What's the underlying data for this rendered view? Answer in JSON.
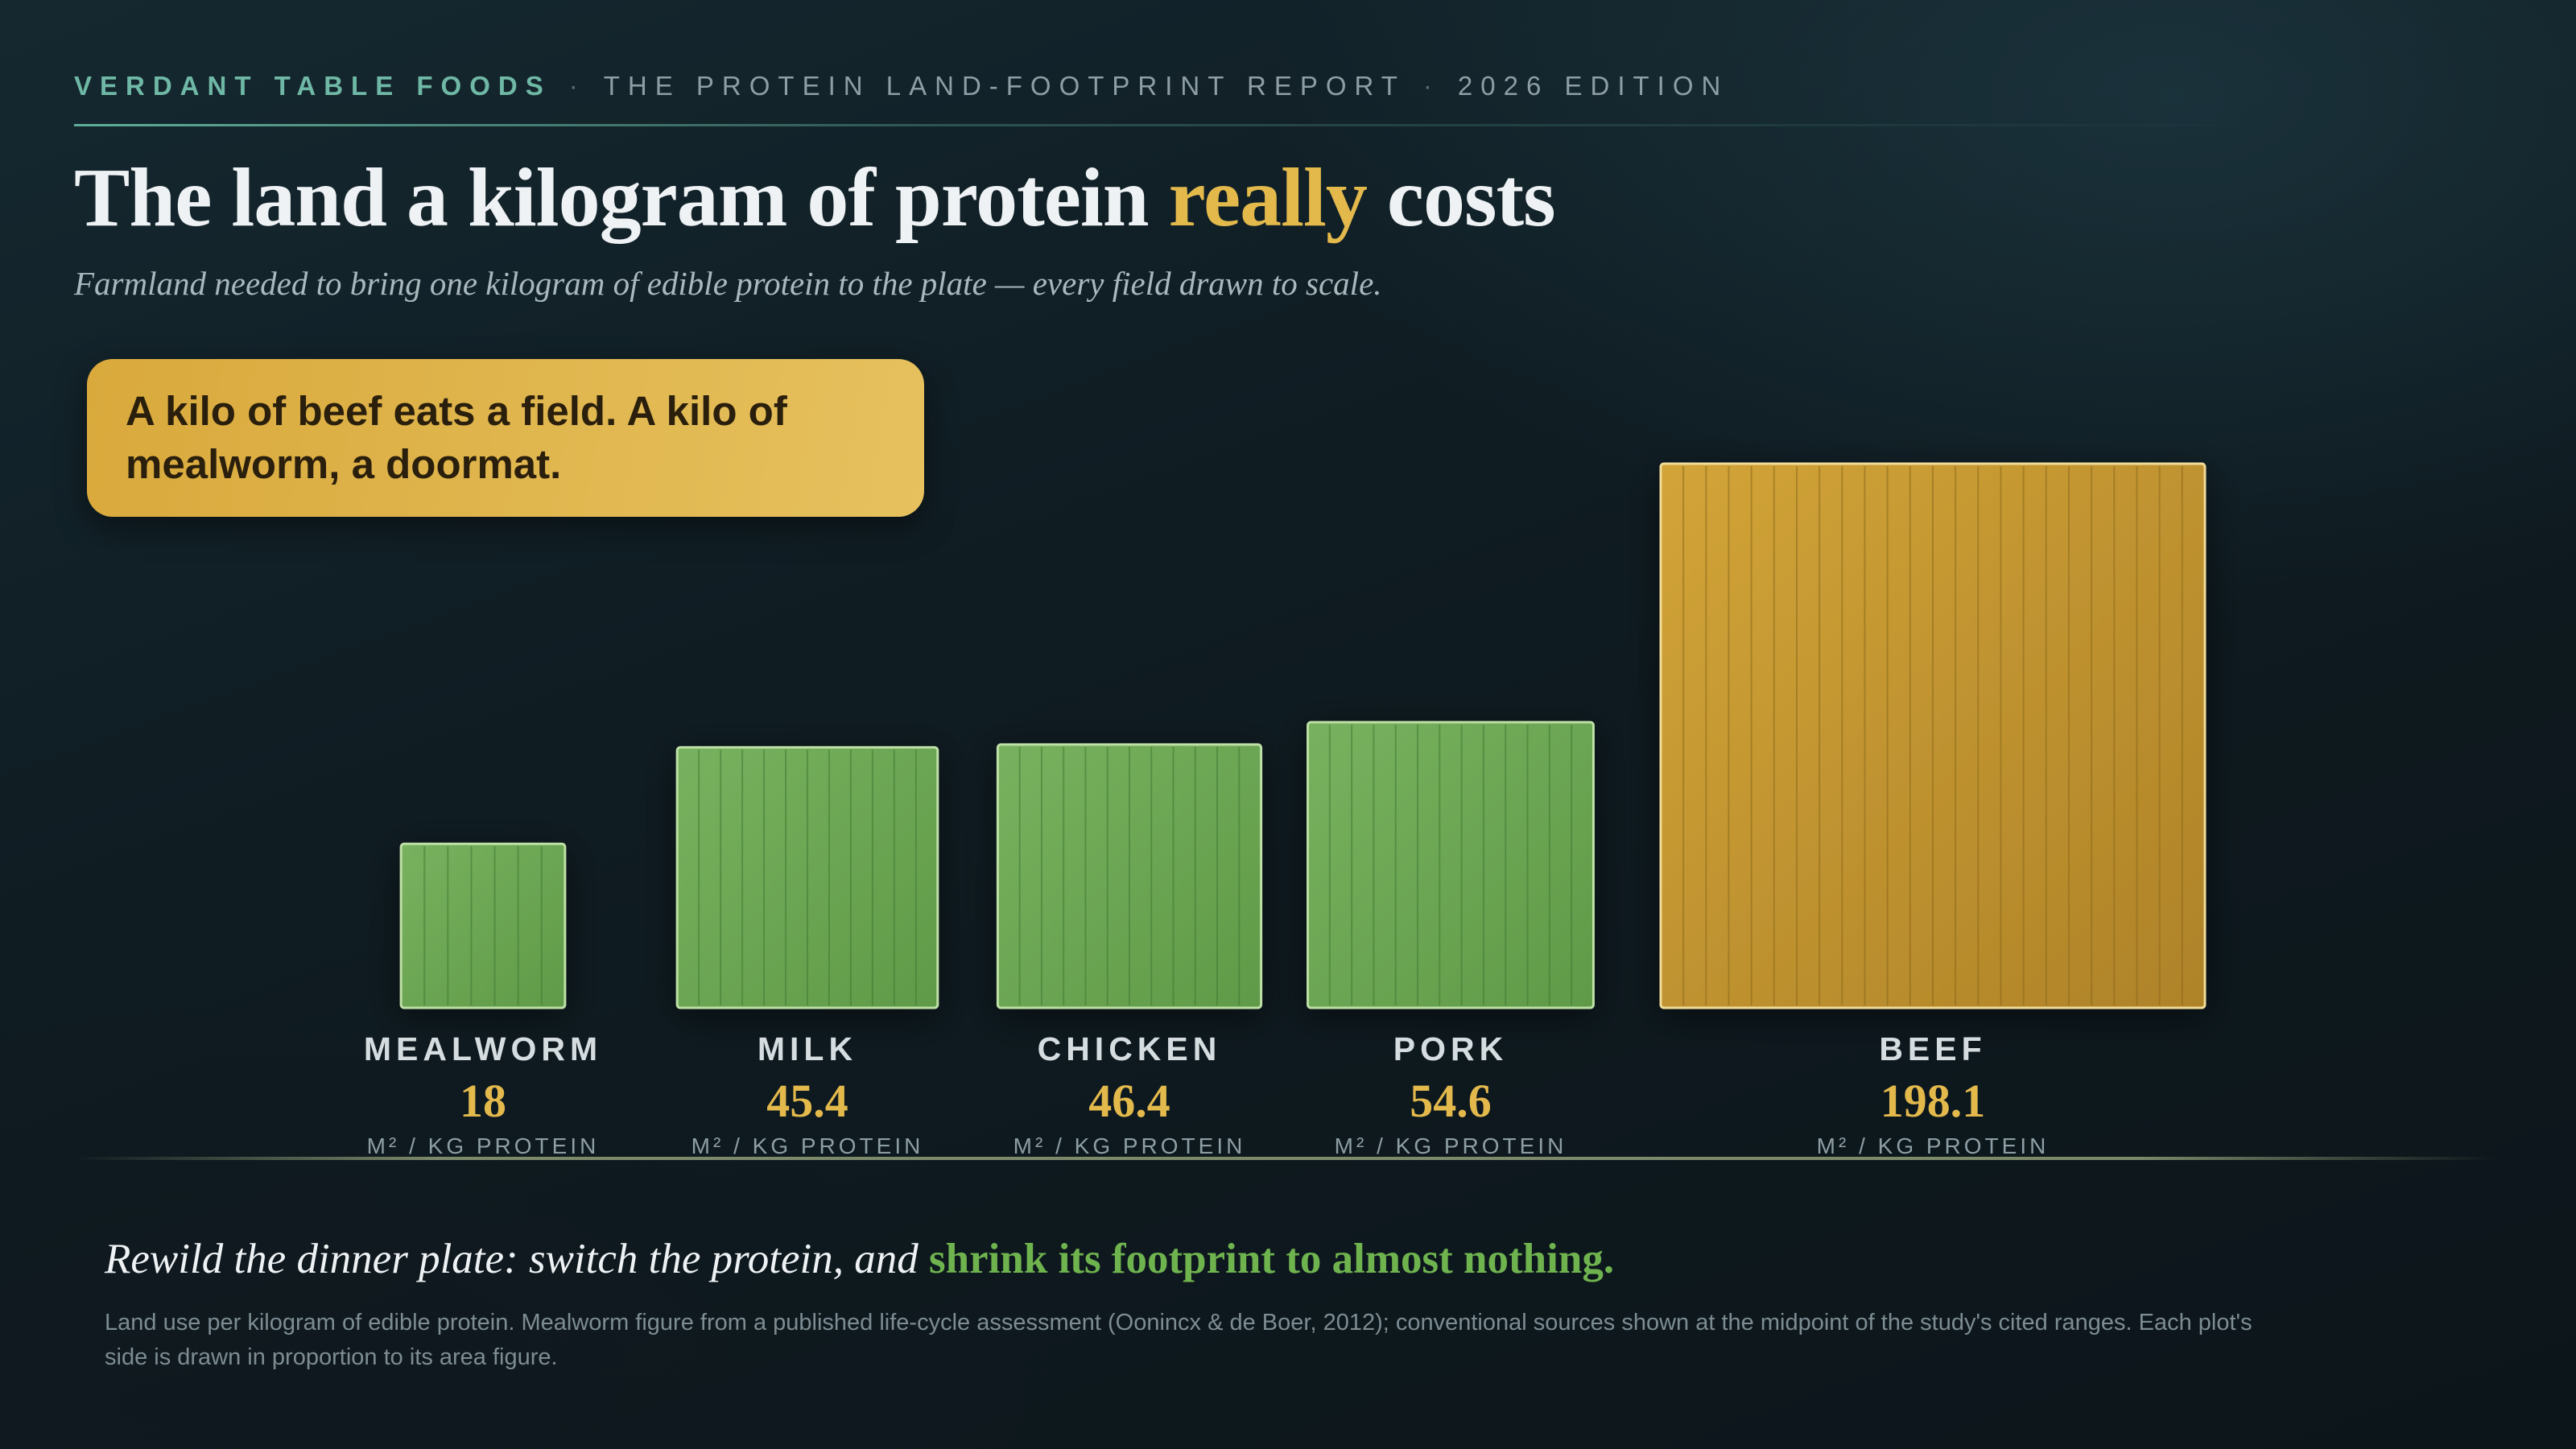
{
  "header": {
    "brand": "VERDANT TABLE FOODS",
    "separator": "·",
    "report": "THE PROTEIN LAND-FOOTPRINT REPORT",
    "edition": "2026 EDITION"
  },
  "title": {
    "part1": "The land a kilogram of protein ",
    "accent": "really",
    "part2": " costs"
  },
  "subtitle": "Farmland needed to bring one kilogram of edible protein to the plate — every field drawn to scale.",
  "callout": "A kilo of beef eats a field. A kilo of mealworm, a doormat.",
  "footer": {
    "lead": "Rewild the dinner plate: switch the protein, and ",
    "highlight": "shrink its footprint to almost nothing.",
    "note": "Land use per kilogram of edible protein. Mealworm figure from a published life-cycle assessment (Oonincx & de Boer, 2012); conventional sources shown at the midpoint of the study's cited ranges. Each plot's side is drawn in proportion to its area figure."
  },
  "colors": {
    "accent_gold": "#e3b94c",
    "field_green": "#6aa452",
    "beef_gold": "#c99a30",
    "header_teal": "#6fb8a6"
  },
  "chart_data": {
    "type": "bar",
    "encoding": "square area",
    "categories": [
      "MEALWORM",
      "MILK",
      "CHICKEN",
      "PORK",
      "BEEF"
    ],
    "values": [
      18,
      45.4,
      46.4,
      54.6,
      198.1
    ],
    "value_labels": [
      "18",
      "45.4",
      "46.4",
      "54.6",
      "198.1"
    ],
    "unit": "M² / KG PROTEIN",
    "highlight_category": "BEEF"
  }
}
